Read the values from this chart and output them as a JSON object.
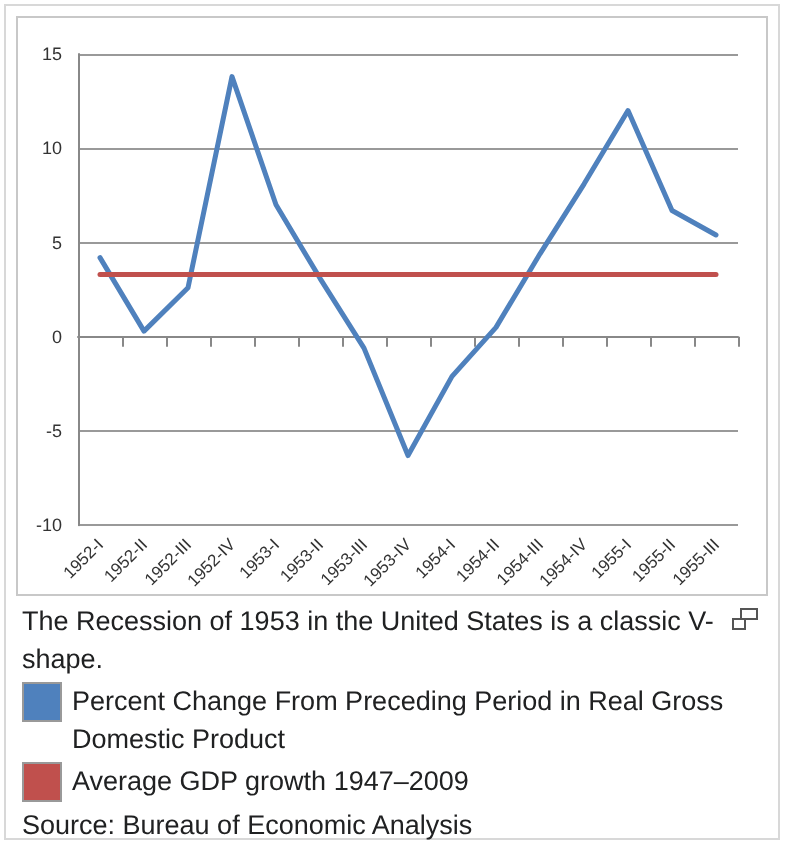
{
  "chart_data": {
    "type": "line",
    "categories": [
      "1952-I",
      "1952-II",
      "1952-III",
      "1952-IV",
      "1953-I",
      "1953-II",
      "1953-III",
      "1953-IV",
      "1954-I",
      "1954-II",
      "1954-III",
      "1954-IV",
      "1955-I",
      "1955-II",
      "1955-III"
    ],
    "series": [
      {
        "name": "Percent Change From Preceding Period in Real Gross Domestic Product",
        "color": "#4f81bd",
        "values": [
          4.2,
          0.3,
          2.6,
          13.8,
          7.0,
          3.1,
          -0.6,
          -6.3,
          -2.1,
          0.5,
          4.4,
          8.1,
          12.0,
          6.7,
          5.4
        ]
      },
      {
        "name": "Average GDP growth 1947–2009",
        "color": "#c0504d",
        "values": [
          3.3,
          3.3,
          3.3,
          3.3,
          3.3,
          3.3,
          3.3,
          3.3,
          3.3,
          3.3,
          3.3,
          3.3,
          3.3,
          3.3,
          3.3
        ]
      }
    ],
    "ylim": [
      -10,
      15
    ],
    "yticks": [
      -10,
      -5,
      0,
      5,
      10,
      15
    ],
    "grid": "y",
    "legend": "bottom",
    "marker": "none",
    "line_style": "solid",
    "annotations": [
      "The Recession of 1953 in the United States is a classic V-shape.",
      "Source: Bureau of Economic Analysis"
    ]
  }
}
